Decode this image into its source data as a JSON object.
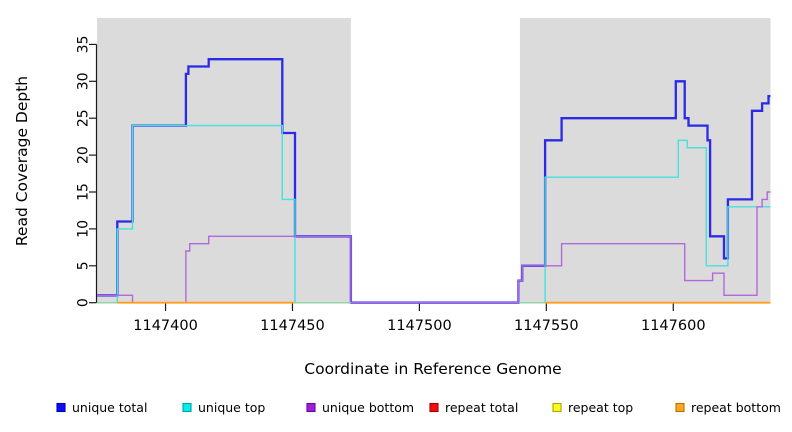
{
  "chart_data": {
    "type": "line",
    "subtype": "step-coverage",
    "title": "",
    "xlabel": "Coordinate in Reference Genome",
    "ylabel": "Read Coverage Depth",
    "xlim": [
      1147373,
      1147638.3
    ],
    "ylim": [
      0,
      38.7
    ],
    "x_ticks": [
      "1147400",
      "1147450",
      "1147500",
      "1147550",
      "1147600"
    ],
    "x_tick_values": [
      1147400,
      1147450,
      1147500,
      1147550,
      1147600
    ],
    "y_ticks": [
      "0",
      "5",
      "10",
      "15",
      "20",
      "25",
      "30",
      "35"
    ],
    "y_tick_values": [
      0,
      5,
      10,
      15,
      20,
      25,
      30,
      35
    ],
    "grid": false,
    "legend_position": "bottom",
    "panel_background": {
      "shaded_color": "#dbdbdb",
      "shaded_regions": [
        [
          1147373,
          1147473
        ],
        [
          1147539.6,
          1147638.3
        ]
      ],
      "gap_region": [
        1147473,
        1147539.6
      ]
    },
    "series": [
      {
        "name": "unique total",
        "color": "#2a2ae8",
        "width": 2.3,
        "steps": [
          [
            1147373,
            1
          ],
          [
            1147381,
            11
          ],
          [
            1147387,
            24
          ],
          [
            1147408,
            31
          ],
          [
            1147409,
            32
          ],
          [
            1147417,
            33
          ],
          [
            1147446,
            23
          ],
          [
            1147451,
            9
          ],
          [
            1147473,
            0
          ],
          [
            1147539,
            3
          ],
          [
            1147540.5,
            5
          ],
          [
            1147549.5,
            22
          ],
          [
            1147556,
            25
          ],
          [
            1147601,
            30
          ],
          [
            1147604.5,
            25
          ],
          [
            1147606,
            24
          ],
          [
            1147613.5,
            22
          ],
          [
            1147614.5,
            9
          ],
          [
            1147620,
            6
          ],
          [
            1147621.5,
            14
          ],
          [
            1147631,
            26
          ],
          [
            1147635,
            27
          ],
          [
            1147637.5,
            28
          ]
        ]
      },
      {
        "name": "unique top",
        "color": "#46e0e0",
        "width": 1.4,
        "steps": [
          [
            1147373,
            0
          ],
          [
            1147381,
            10
          ],
          [
            1147387,
            24
          ],
          [
            1147446,
            14
          ],
          [
            1147451,
            0
          ],
          [
            1147549.5,
            17
          ],
          [
            1147602,
            22
          ],
          [
            1147605.5,
            21
          ],
          [
            1147613,
            5
          ],
          [
            1147621.5,
            13
          ]
        ]
      },
      {
        "name": "unique bottom",
        "color": "#b168dd",
        "width": 1.4,
        "steps": [
          [
            1147373,
            1
          ],
          [
            1147387,
            0
          ],
          [
            1147408,
            7
          ],
          [
            1147409.5,
            8
          ],
          [
            1147417,
            9
          ],
          [
            1147473,
            0
          ],
          [
            1147539,
            3
          ],
          [
            1147540.5,
            5
          ],
          [
            1147556,
            8
          ],
          [
            1147604.5,
            3
          ],
          [
            1147615.5,
            4
          ],
          [
            1147620,
            1
          ],
          [
            1147633,
            13
          ],
          [
            1147635,
            14
          ],
          [
            1147637,
            15
          ]
        ]
      },
      {
        "name": "repeat total",
        "color": "#e32222",
        "width": 1.3,
        "value": 0,
        "segments": [
          [
            1147381,
            1147450.5
          ],
          [
            1147549.5,
            1147638.3
          ]
        ]
      },
      {
        "name": "repeat top",
        "color": "#f5f533",
        "width": 1.3,
        "value": 0,
        "segments": [
          [
            1147381,
            1147450.5
          ],
          [
            1147549.5,
            1147638.3
          ]
        ]
      },
      {
        "name": "repeat bottom",
        "color": "#ff9d1e",
        "width": 1.8,
        "value": 0,
        "segments": [
          [
            1147381,
            1147450.5
          ],
          [
            1147549.5,
            1147638.3
          ]
        ]
      }
    ],
    "zero_line_tint": {
      "color": "#93d6a4",
      "width": 1.5,
      "value": 0,
      "segments": [
        [
          1147373,
          1147381
        ],
        [
          1147450.5,
          1147473
        ],
        [
          1147539.6,
          1147549.5
        ]
      ]
    },
    "legend": [
      {
        "label": "unique total",
        "fill": "#0d0df2",
        "border": "#0000b8"
      },
      {
        "label": "unique top",
        "fill": "#00eeee",
        "border": "#00a3a3"
      },
      {
        "label": "unique bottom",
        "fill": "#9c1fd6",
        "border": "#6d00a8"
      },
      {
        "label": "repeat total",
        "fill": "#f20d0d",
        "border": "#a80000"
      },
      {
        "label": "repeat top",
        "fill": "#fafa1e",
        "border": "#a8a800"
      },
      {
        "label": "repeat bottom",
        "fill": "#ffa51e",
        "border": "#b87400"
      }
    ]
  }
}
